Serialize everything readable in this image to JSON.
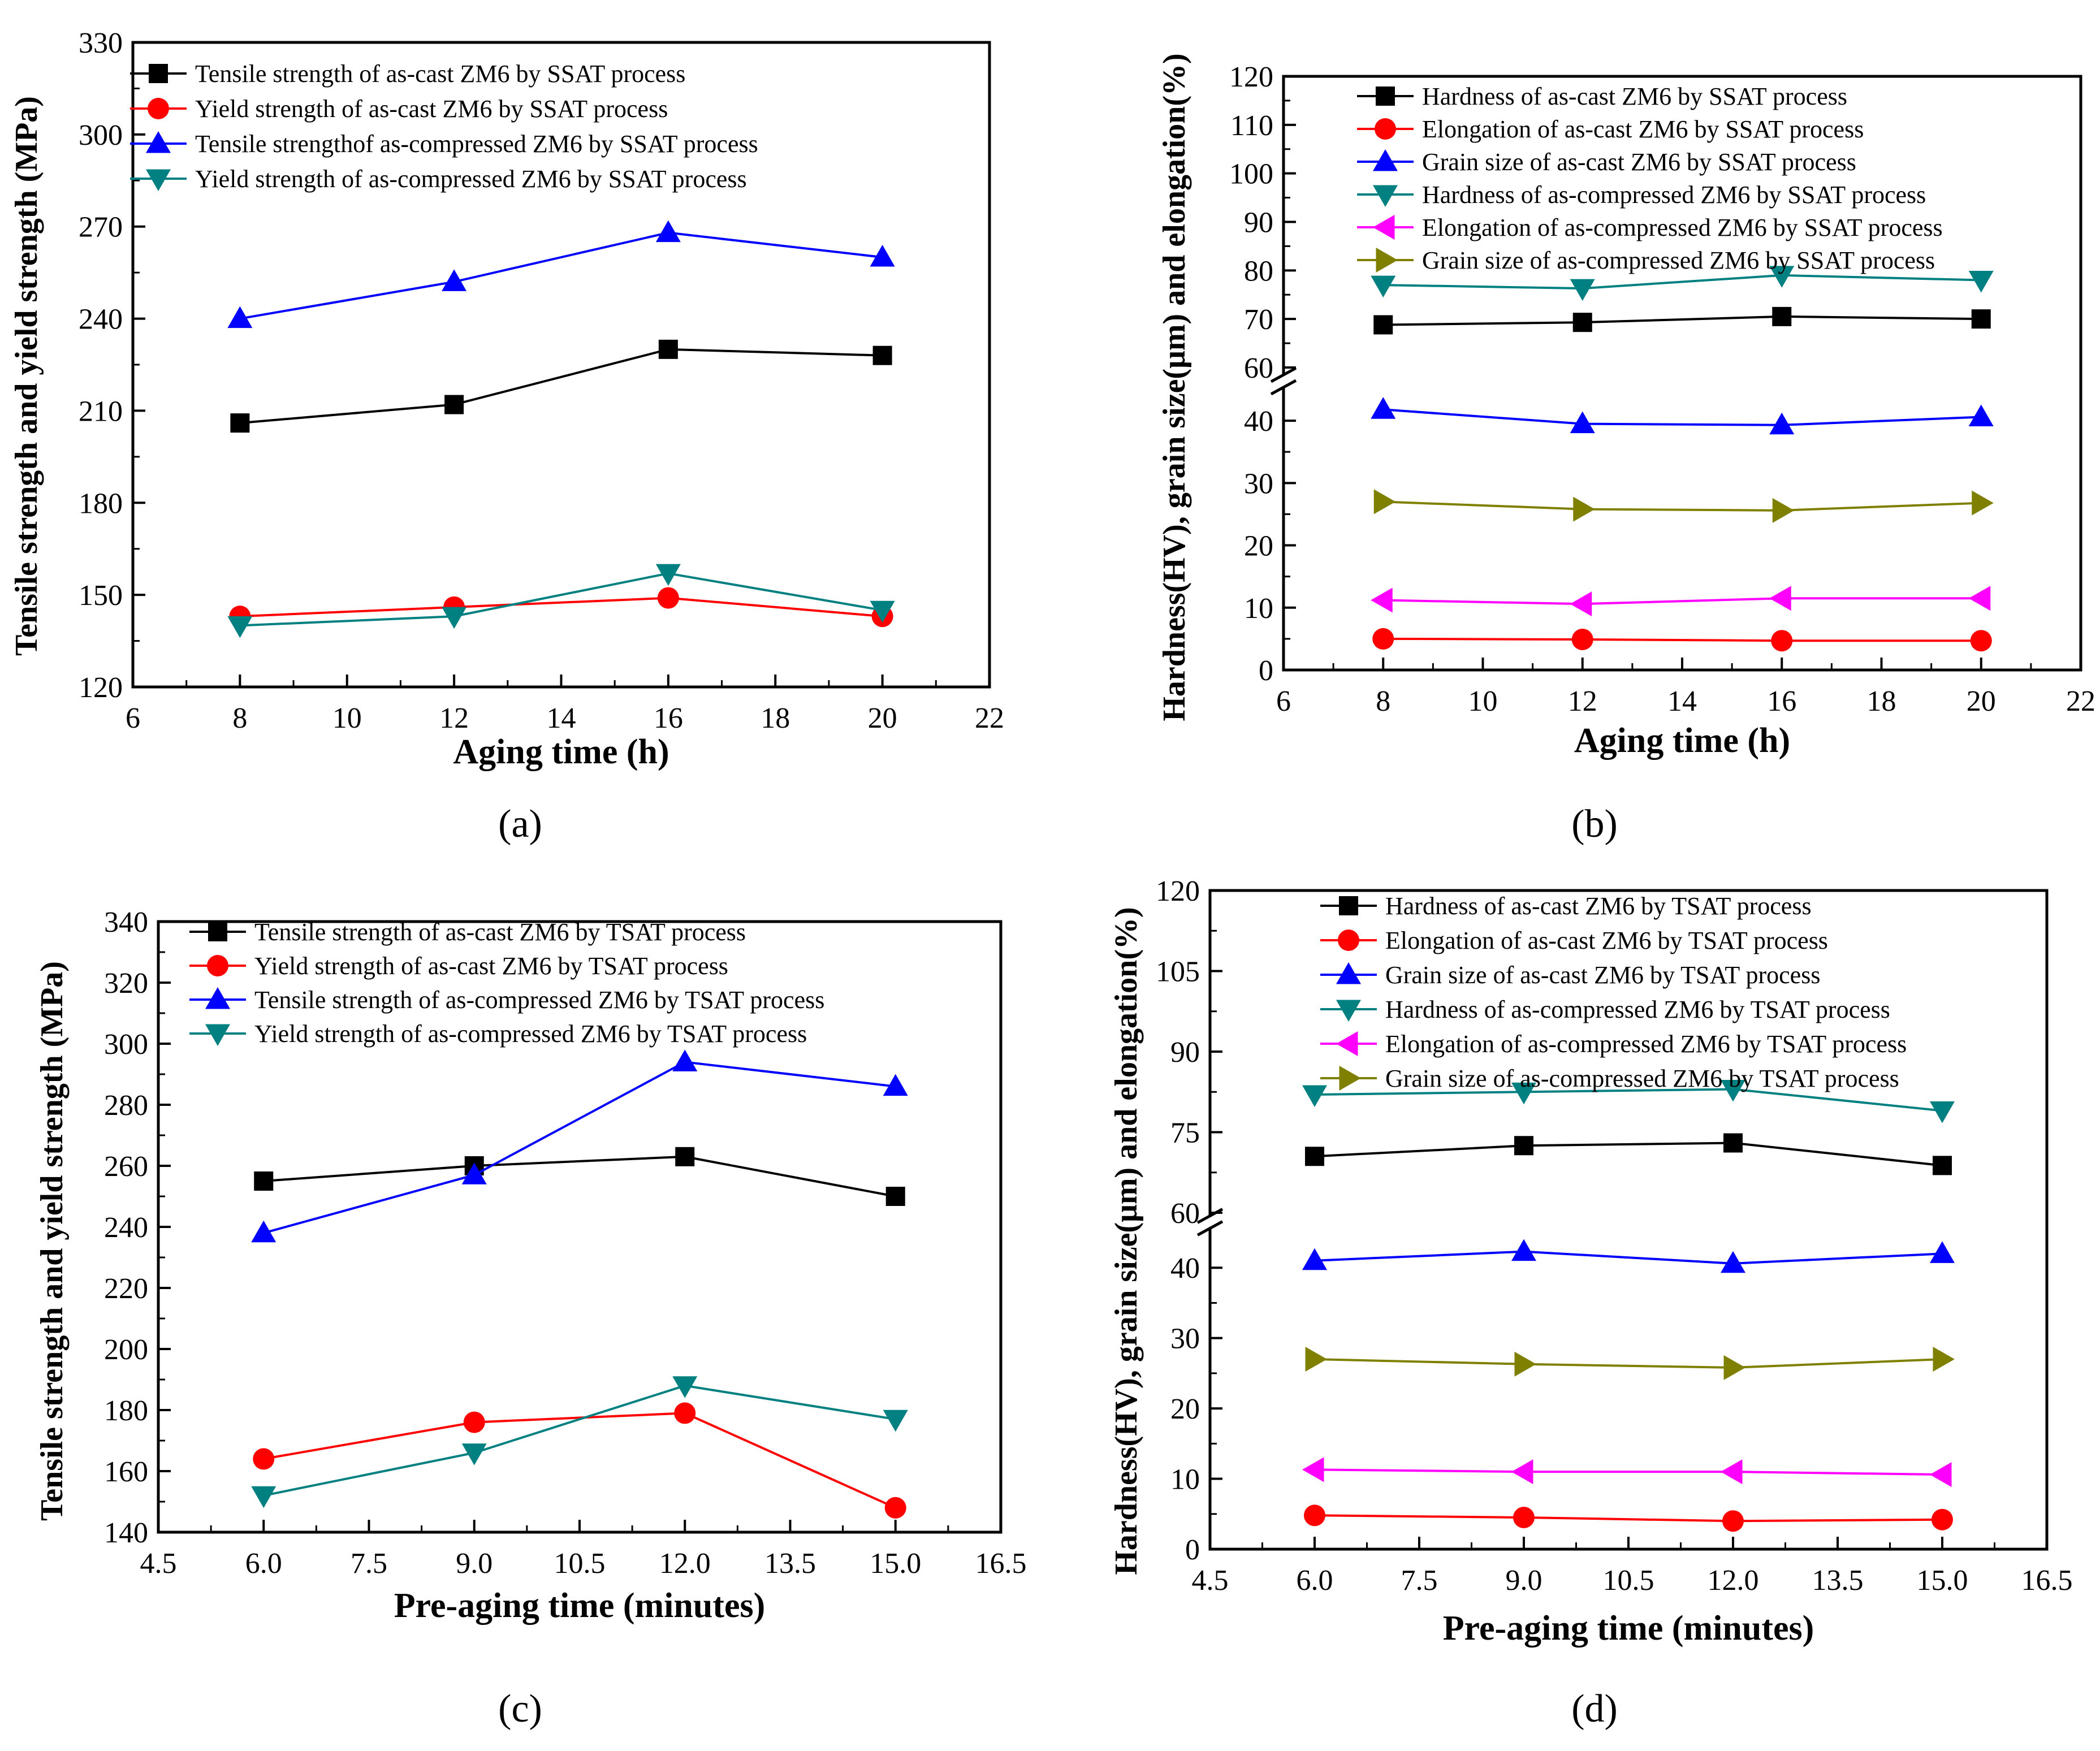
{
  "chart_data": [
    {
      "type": "line",
      "panel_label": "(a)",
      "xlabel": "Aging time (h)",
      "ylabel": "Tensile strength and yield strength (MPa)",
      "xlim": [
        6,
        22
      ],
      "ylim": [
        120,
        330
      ],
      "x_ticks": [
        6,
        8,
        10,
        12,
        14,
        16,
        18,
        20,
        22
      ],
      "x_tick_labels": [
        "6",
        "8",
        "10",
        "12",
        "14",
        "16",
        "18",
        "20",
        "22"
      ],
      "y_ticks": [
        120,
        150,
        180,
        210,
        240,
        270,
        300,
        330
      ],
      "y_tick_labels": [
        "120",
        "150",
        "180",
        "210",
        "240",
        "270",
        "300",
        "330"
      ],
      "x": [
        8,
        12,
        16,
        20
      ],
      "legend_position": "top-left",
      "series": [
        {
          "name": "Tensile strength of as-cast ZM6 by SSAT process",
          "marker": "square",
          "color": "#000000",
          "values": [
            206,
            212,
            230,
            228
          ]
        },
        {
          "name": "Yield strength of as-cast ZM6 by SSAT process",
          "marker": "circle",
          "color": "#ff0000",
          "values": [
            143,
            146,
            149,
            143
          ]
        },
        {
          "name": "Tensile strengthof as-compressed ZM6 by SSAT process",
          "marker": "triangle-up",
          "color": "#0000ff",
          "values": [
            240,
            252,
            268,
            260
          ]
        },
        {
          "name": "Yield strength of as-compressed ZM6 by SSAT process",
          "marker": "triangle-down",
          "color": "#008080",
          "values": [
            140,
            143,
            157,
            145
          ]
        }
      ]
    },
    {
      "type": "line",
      "panel_label": "(b)",
      "xlabel": "Aging time (h)",
      "ylabel": "Hardness(HV), grain size(μm) and elongation(%)",
      "xlim": [
        6,
        22
      ],
      "ylim_lower": [
        0,
        44
      ],
      "ylim_upper": [
        60,
        120
      ],
      "axis_break": true,
      "x_ticks": [
        6,
        8,
        10,
        12,
        14,
        16,
        18,
        20,
        22
      ],
      "x_tick_labels": [
        "6",
        "8",
        "10",
        "12",
        "14",
        "16",
        "18",
        "20",
        "22"
      ],
      "y_ticks_lower": [
        0,
        10,
        20,
        30,
        40
      ],
      "y_tick_labels_lower": [
        "0",
        "10",
        "20",
        "30",
        "40"
      ],
      "y_ticks_upper": [
        60,
        70,
        80,
        90,
        100,
        110,
        120
      ],
      "y_tick_labels_upper": [
        "60",
        "70",
        "80",
        "90",
        "100",
        "110",
        "120"
      ],
      "x": [
        8,
        12,
        16,
        20
      ],
      "legend_position": "top-right",
      "series": [
        {
          "name": "Hardness of as-cast ZM6 by SSAT process",
          "marker": "square",
          "color": "#000000",
          "values": [
            68.8,
            69.3,
            70.5,
            70.0
          ]
        },
        {
          "name": "Elongation of as-cast ZM6 by SSAT process",
          "marker": "circle",
          "color": "#ff0000",
          "values": [
            5.0,
            4.9,
            4.7,
            4.7
          ]
        },
        {
          "name": "Grain size of as-cast ZM6 by SSAT process",
          "marker": "triangle-up",
          "color": "#0000ff",
          "values": [
            41.8,
            39.5,
            39.3,
            40.6
          ]
        },
        {
          "name": "Hardness of as-compressed ZM6 by SSAT process",
          "marker": "triangle-down",
          "color": "#008080",
          "values": [
            77.0,
            76.3,
            79.0,
            78.0
          ]
        },
        {
          "name": "Elongation of as-compressed ZM6 by SSAT process",
          "marker": "triangle-left",
          "color": "#ff00ff",
          "values": [
            11.2,
            10.6,
            11.5,
            11.5
          ]
        },
        {
          "name": "Grain size of as-compressed ZM6 by SSAT process",
          "marker": "triangle-right",
          "color": "#808000",
          "values": [
            27.0,
            25.8,
            25.6,
            26.8
          ]
        }
      ]
    },
    {
      "type": "line",
      "panel_label": "(c)",
      "xlabel": "Pre-aging time (minutes)",
      "ylabel": "Tensile strength and yield strength (MPa)",
      "xlim": [
        4.5,
        16.5
      ],
      "ylim": [
        140,
        340
      ],
      "x_ticks": [
        4.5,
        6.0,
        7.5,
        9.0,
        10.5,
        12.0,
        13.5,
        15.0,
        16.5
      ],
      "x_tick_labels": [
        "4.5",
        "6.0",
        "7.5",
        "9.0",
        "10.5",
        "12.0",
        "13.5",
        "15.0",
        "16.5"
      ],
      "y_ticks": [
        140,
        160,
        180,
        200,
        220,
        240,
        260,
        280,
        300,
        320,
        340
      ],
      "y_tick_labels": [
        "140",
        "160",
        "180",
        "200",
        "220",
        "240",
        "260",
        "280",
        "300",
        "320",
        "340"
      ],
      "x": [
        6,
        9,
        12,
        15
      ],
      "legend_position": "top-right",
      "series": [
        {
          "name": "Tensile strength of as-cast ZM6 by TSAT process",
          "marker": "square",
          "color": "#000000",
          "values": [
            255,
            260,
            263,
            250
          ]
        },
        {
          "name": "Yield strength of as-cast ZM6 by TSAT process",
          "marker": "circle",
          "color": "#ff0000",
          "values": [
            164,
            176,
            179,
            148
          ]
        },
        {
          "name": "Tensile strength of as-compressed ZM6 by TSAT process",
          "marker": "triangle-up",
          "color": "#0000ff",
          "values": [
            238,
            257,
            294,
            286
          ]
        },
        {
          "name": "Yield strength of as-compressed ZM6 by TSAT process",
          "marker": "triangle-down",
          "color": "#008080",
          "values": [
            152,
            166,
            188,
            177
          ]
        }
      ]
    },
    {
      "type": "line",
      "panel_label": "(d)",
      "xlabel": "Pre-aging time (minutes)",
      "ylabel": "Hardness(HV), grain size(μm) and elongation(%)",
      "xlim": [
        4.5,
        16.5
      ],
      "ylim_lower": [
        0,
        45
      ],
      "ylim_upper": [
        60,
        120
      ],
      "axis_break": true,
      "x_ticks": [
        4.5,
        6.0,
        7.5,
        9.0,
        10.5,
        12.0,
        13.5,
        15.0,
        16.5
      ],
      "x_tick_labels": [
        "4.5",
        "6.0",
        "7.5",
        "9.0",
        "10.5",
        "12.0",
        "13.5",
        "15.0",
        "16.5"
      ],
      "y_ticks_lower": [
        0,
        10,
        20,
        30,
        40
      ],
      "y_tick_labels_lower": [
        "0",
        "10",
        "20",
        "30",
        "40"
      ],
      "y_ticks_upper": [
        60,
        75,
        90,
        105,
        120
      ],
      "y_tick_labels_upper": [
        "60",
        "75",
        "90",
        "105",
        "120"
      ],
      "x": [
        6,
        9,
        12,
        15
      ],
      "legend_position": "top-right",
      "series": [
        {
          "name": "Hardness of as-cast ZM6 by TSAT process",
          "marker": "square",
          "color": "#000000",
          "values": [
            70.5,
            72.5,
            73.0,
            68.8
          ]
        },
        {
          "name": "Elongation of as-cast ZM6 by TSAT process",
          "marker": "circle",
          "color": "#ff0000",
          "values": [
            4.8,
            4.5,
            4.0,
            4.2
          ]
        },
        {
          "name": "Grain size of as-cast ZM6 by TSAT process",
          "marker": "triangle-up",
          "color": "#0000ff",
          "values": [
            41.0,
            42.3,
            40.6,
            42.0
          ]
        },
        {
          "name": "Hardness of as-compressed ZM6 by TSAT process",
          "marker": "triangle-down",
          "color": "#008080",
          "values": [
            82.0,
            82.5,
            83.0,
            79.0
          ]
        },
        {
          "name": "Elongation of as-compressed ZM6 by TSAT process",
          "marker": "triangle-left",
          "color": "#ff00ff",
          "values": [
            11.3,
            11.0,
            11.0,
            10.6
          ]
        },
        {
          "name": "Grain size of as-compressed ZM6 by TSAT process",
          "marker": "triangle-right",
          "color": "#808000",
          "values": [
            27.0,
            26.3,
            25.8,
            27.0
          ]
        }
      ]
    }
  ]
}
